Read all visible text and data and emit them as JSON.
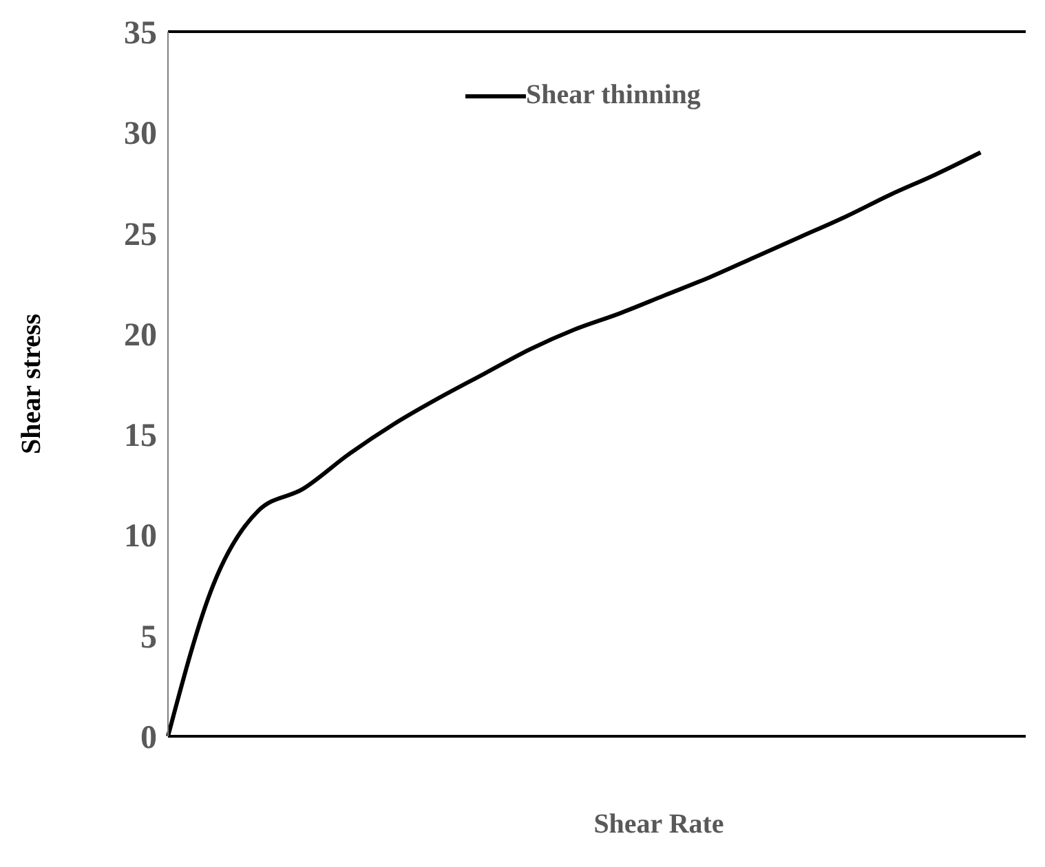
{
  "chart_data": {
    "type": "line",
    "xlabel": "Shear Rate",
    "ylabel": "Shear stress",
    "categories": [
      null,
      null,
      null,
      null,
      null,
      null,
      null,
      null,
      null,
      null,
      null,
      null,
      null,
      null,
      null,
      null,
      null,
      null,
      null,
      null
    ],
    "series": [
      {
        "name": "Shear thinning",
        "color": "#000000",
        "values": [
          0,
          7.5,
          11.2,
          12.3,
          14,
          15.5,
          16.8,
          18,
          19.2,
          20.2,
          21,
          21.9,
          22.8,
          23.8,
          24.8,
          25.8,
          26.9,
          27.9,
          29,
          null
        ]
      }
    ],
    "ylim": [
      0,
      35
    ],
    "yticks": [
      0,
      5,
      10,
      15,
      20,
      25,
      30,
      35
    ],
    "tick_labels": "y",
    "legend": "top",
    "marker": "none",
    "line_style": "solid"
  }
}
